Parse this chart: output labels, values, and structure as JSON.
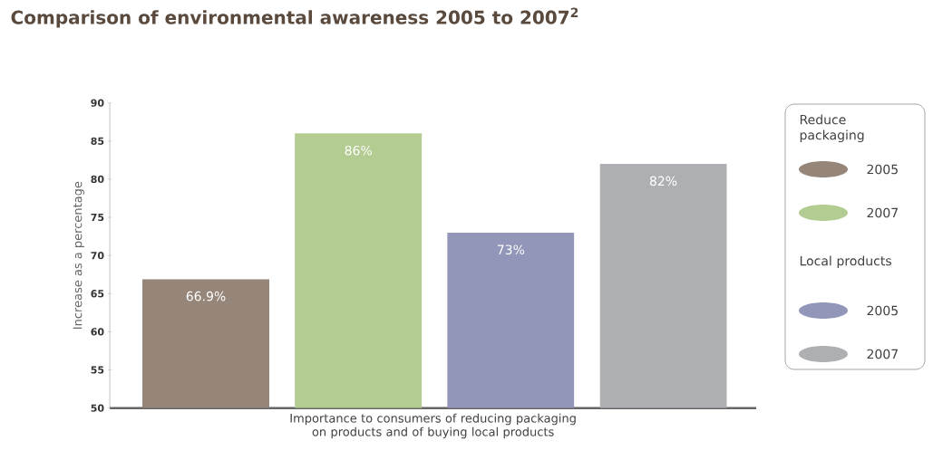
{
  "chart_data": {
    "type": "bar",
    "title": "Comparison of environmental awareness 2005 to 2007$^{2}$",
    "xlabel": "Importance to consumers of reducing packaging on products and of buying local products",
    "ylabel": "Increase as a percentage",
    "categories": [
      null,
      null,
      null,
      null
    ],
    "series": [
      {
        "name": "2005",
        "color": "#968679",
        "values": [
          66.9,
          null,
          null,
          null
        ],
        "value_labels": [
          "66.9%",
          null,
          null,
          null
        ]
      },
      {
        "name": "2007",
        "color": "#b3cc91",
        "values": [
          null,
          86,
          null,
          null
        ],
        "value_labels": [
          null,
          "86%",
          null,
          null
        ]
      },
      {
        "name": "2005",
        "color": "#9296b9",
        "values": [
          null,
          null,
          73,
          null
        ],
        "value_labels": [
          null,
          null,
          "73%",
          null
        ]
      },
      {
        "name": "2007",
        "color": "#aeafb2",
        "values": [
          null,
          null,
          null,
          82
        ],
        "value_labels": [
          null,
          null,
          null,
          "82%"
        ]
      }
    ],
    "annotations": [
      "Reduce packaging",
      "Local products"
    ],
    "ylim": [
      50,
      90
    ],
    "yticks": [
      50,
      55,
      60,
      65,
      70,
      75,
      80,
      85,
      90
    ],
    "grid": false,
    "legend": "right"
  }
}
